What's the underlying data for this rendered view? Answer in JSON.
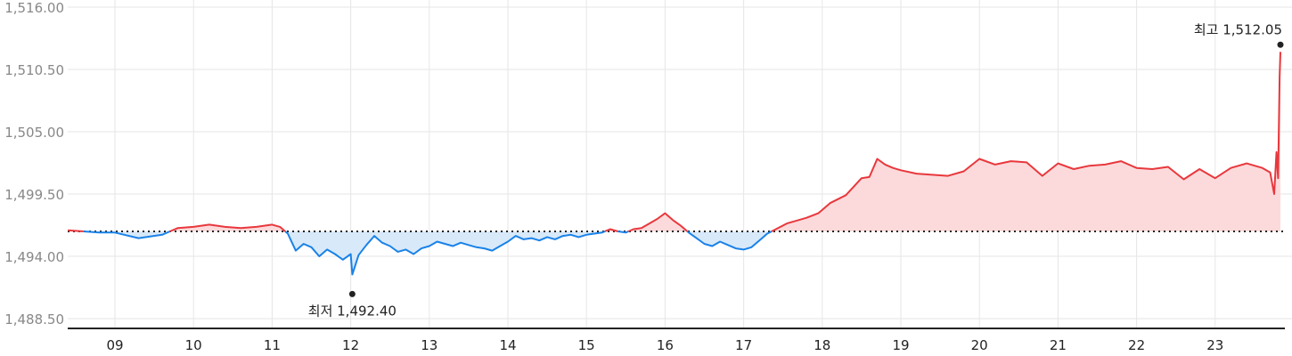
{
  "chart_data": {
    "type": "line",
    "title": "",
    "xlabel": "",
    "ylabel": "",
    "x_tick_labels": [
      "09",
      "10",
      "11",
      "12",
      "13",
      "14",
      "15",
      "16",
      "17",
      "18",
      "19",
      "20",
      "21",
      "22",
      "23"
    ],
    "y_tick_labels": [
      "1,516.00",
      "1,510.50",
      "1,505.00",
      "1,499.50",
      "1,494.00",
      "1,488.50"
    ],
    "ylim": [
      1488.5,
      1516.0
    ],
    "grid": true,
    "baseline": 1496.2,
    "up_color": "#e8383d",
    "down_color": "#1a82e8",
    "up_fill": "#fcdadb",
    "down_fill": "#d8e9f9",
    "annotations": {
      "low_label": "최저 1,492.40",
      "low_value": 1492.4,
      "low_day": 12.02,
      "high_label": "최고 1,512.05",
      "high_value": 1512.05,
      "high_day": 23.83
    },
    "series": [
      {
        "x": [
          8.4,
          8.6,
          8.8,
          9.0,
          9.3,
          9.6,
          9.8,
          10.0,
          10.2,
          10.4,
          10.6,
          10.8,
          11.0,
          11.1,
          11.2,
          11.3,
          11.4,
          11.5,
          11.6,
          11.7,
          11.8,
          11.9,
          12.0,
          12.02,
          12.1,
          12.2,
          12.3,
          12.4,
          12.5,
          12.6,
          12.7,
          12.8,
          12.9,
          13.0,
          13.1,
          13.2,
          13.3,
          13.4,
          13.5,
          13.6,
          13.7,
          13.8,
          13.9,
          14.0,
          14.1,
          14.2,
          14.3,
          14.4,
          14.5,
          14.6,
          14.7,
          14.8,
          14.9,
          15.0,
          15.1,
          15.2,
          15.3,
          15.4,
          15.5,
          15.6,
          15.7,
          15.8,
          15.9,
          16.0,
          16.1,
          16.2,
          16.3,
          16.4,
          16.5,
          16.6,
          16.7,
          16.8,
          16.9,
          17.0,
          17.1,
          17.2,
          17.3,
          17.55,
          17.8,
          17.95,
          18.1,
          18.3,
          18.5,
          18.6,
          18.7,
          18.8,
          18.9,
          19.0,
          19.2,
          19.4,
          19.6,
          19.8,
          20.0,
          20.2,
          20.4,
          20.6,
          20.8,
          21.0,
          21.2,
          21.4,
          21.6,
          21.8,
          22.0,
          22.2,
          22.4,
          22.6,
          22.8,
          23.0,
          23.2,
          23.4,
          23.6,
          23.7,
          23.75,
          23.78,
          23.8,
          23.82,
          23.83
        ],
        "y": [
          1496.3,
          1496.2,
          1496.1,
          1496.1,
          1495.6,
          1495.9,
          1496.5,
          1496.6,
          1496.8,
          1496.6,
          1496.5,
          1496.6,
          1496.8,
          1496.6,
          1496.0,
          1494.5,
          1495.1,
          1494.8,
          1494.0,
          1494.6,
          1494.2,
          1493.7,
          1494.2,
          1492.4,
          1494.1,
          1495.0,
          1495.8,
          1495.2,
          1494.9,
          1494.4,
          1494.6,
          1494.2,
          1494.7,
          1494.9,
          1495.3,
          1495.1,
          1494.9,
          1495.2,
          1495.0,
          1494.8,
          1494.7,
          1494.5,
          1494.9,
          1495.3,
          1495.8,
          1495.5,
          1495.6,
          1495.4,
          1495.7,
          1495.5,
          1495.8,
          1495.9,
          1495.7,
          1495.9,
          1496.0,
          1496.1,
          1496.4,
          1496.2,
          1496.1,
          1496.4,
          1496.5,
          1496.9,
          1497.3,
          1497.8,
          1497.2,
          1496.7,
          1496.1,
          1495.6,
          1495.1,
          1494.9,
          1495.3,
          1495.0,
          1494.7,
          1494.6,
          1494.8,
          1495.4,
          1496.0,
          1496.9,
          1497.4,
          1497.8,
          1498.7,
          1499.4,
          1500.9,
          1501.0,
          1502.6,
          1502.1,
          1501.8,
          1501.6,
          1501.3,
          1501.2,
          1501.1,
          1501.5,
          1502.6,
          1502.1,
          1502.4,
          1502.3,
          1501.1,
          1502.2,
          1501.7,
          1502.0,
          1502.1,
          1502.4,
          1501.8,
          1501.7,
          1501.9,
          1500.8,
          1501.7,
          1500.9,
          1501.8,
          1502.2,
          1501.8,
          1501.4,
          1499.5,
          1503.2,
          1500.9,
          1509.8,
          1512.05
        ]
      }
    ]
  }
}
